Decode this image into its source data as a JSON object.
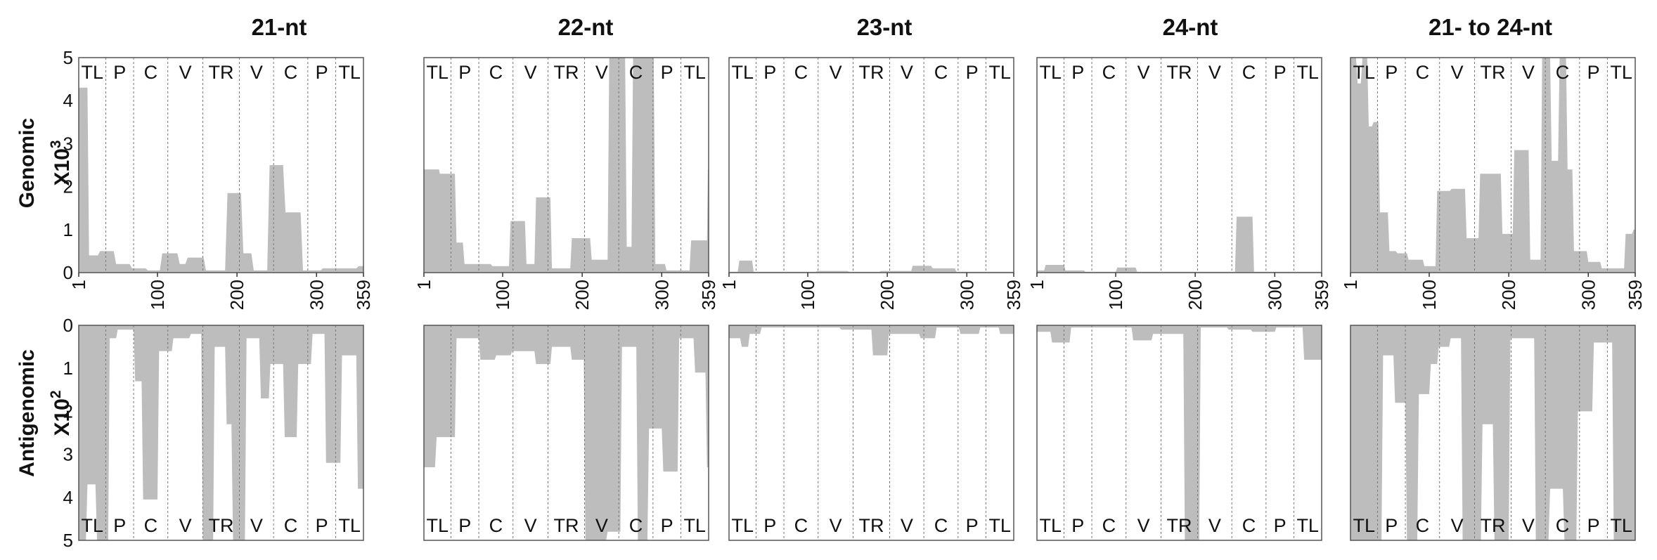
{
  "colors": {
    "area": "#bdbdbd",
    "frame": "#555555",
    "divider": "#777777",
    "text": "#111111"
  },
  "chart_data": {
    "type": "area",
    "columns": [
      "21-nt",
      "22-nt",
      "23-nt",
      "24-nt",
      "21- to 24-nt"
    ],
    "rows": [
      {
        "label": "Genomic",
        "multiplier": "X10",
        "exponent": "3",
        "ylim": [
          0,
          5
        ],
        "yticks": [
          "0",
          "1",
          "2",
          "3",
          "4",
          "5"
        ]
      },
      {
        "label": "Antigenomic",
        "multiplier": "X10",
        "exponent": "2",
        "ylim": [
          0,
          5
        ],
        "yticks": [
          "0",
          "1",
          "2",
          "3",
          "4",
          "5"
        ],
        "inverted": true
      }
    ],
    "xlim": [
      1,
      359
    ],
    "xticks": [
      "1",
      "100",
      "200",
      "300",
      "359"
    ],
    "regions": [
      {
        "label": "TL",
        "start": 1,
        "end": 35
      },
      {
        "label": "P",
        "start": 35,
        "end": 70
      },
      {
        "label": "C",
        "start": 70,
        "end": 113
      },
      {
        "label": "V",
        "start": 113,
        "end": 157
      },
      {
        "label": "TR",
        "start": 157,
        "end": 203
      },
      {
        "label": "V",
        "start": 203,
        "end": 246
      },
      {
        "label": "C",
        "start": 246,
        "end": 289
      },
      {
        "label": "P",
        "start": 289,
        "end": 324
      },
      {
        "label": "TL",
        "start": 324,
        "end": 359
      }
    ],
    "panels": [
      {
        "row": 0,
        "col": 0,
        "series": {
          "name": "21-nt genomic",
          "x": [
            1,
            12,
            14,
            25,
            28,
            45,
            48,
            65,
            68,
            85,
            88,
            103,
            106,
            125,
            128,
            135,
            138,
            158,
            161,
            185,
            188,
            205,
            208,
            218,
            221,
            238,
            241,
            258,
            261,
            280,
            283,
            305,
            308,
            350,
            353,
            359
          ],
          "y": [
            4.3,
            4.3,
            0.4,
            0.4,
            0.5,
            0.5,
            0.2,
            0.2,
            0.1,
            0.1,
            0.05,
            0.05,
            0.45,
            0.45,
            0.2,
            0.2,
            0.35,
            0.35,
            0.05,
            0.05,
            1.85,
            1.85,
            0.45,
            0.45,
            0.05,
            0.05,
            2.5,
            2.5,
            1.4,
            1.4,
            0.05,
            0.05,
            0.1,
            0.1,
            0.15,
            0.15
          ]
        }
      },
      {
        "row": 0,
        "col": 1,
        "series": {
          "name": "22-nt genomic",
          "x": [
            1,
            20,
            21,
            40,
            42,
            50,
            52,
            85,
            87,
            108,
            110,
            128,
            130,
            140,
            142,
            160,
            162,
            185,
            187,
            210,
            212,
            232,
            234,
            254,
            256,
            262,
            264,
            290,
            292,
            304,
            306,
            335,
            337,
            357,
            358,
            359
          ],
          "y": [
            2.4,
            2.4,
            2.3,
            2.3,
            0.7,
            0.7,
            0.2,
            0.2,
            0.15,
            0.15,
            1.2,
            1.2,
            0.2,
            0.2,
            1.75,
            1.75,
            0.1,
            0.1,
            0.8,
            0.8,
            0.3,
            0.3,
            5.0,
            5.0,
            0.6,
            0.6,
            5.0,
            5.0,
            0.2,
            0.2,
            0.05,
            0.05,
            0.75,
            0.75,
            2.4,
            2.4
          ]
        }
      },
      {
        "row": 0,
        "col": 2,
        "series": {
          "name": "23-nt genomic",
          "x": [
            1,
            12,
            14,
            30,
            32,
            110,
            112,
            150,
            152,
            190,
            192,
            230,
            232,
            255,
            257,
            285,
            287,
            359
          ],
          "y": [
            0.02,
            0.02,
            0.28,
            0.28,
            0.02,
            0.02,
            0.04,
            0.04,
            0.02,
            0.02,
            0.04,
            0.04,
            0.16,
            0.16,
            0.1,
            0.1,
            0.02,
            0.02
          ]
        }
      },
      {
        "row": 0,
        "col": 3,
        "series": {
          "name": "24-nt genomic",
          "x": [
            1,
            10,
            12,
            35,
            37,
            60,
            62,
            100,
            102,
            125,
            127,
            250,
            252,
            272,
            274,
            359
          ],
          "y": [
            0.05,
            0.05,
            0.18,
            0.18,
            0.05,
            0.05,
            0.02,
            0.02,
            0.12,
            0.12,
            0.02,
            0.02,
            1.3,
            1.3,
            0.02,
            0.02
          ]
        }
      },
      {
        "row": 0,
        "col": 4,
        "series": {
          "name": "21- to 24-nt genomic",
          "x": [
            1,
            8,
            10,
            14,
            16,
            22,
            24,
            28,
            30,
            36,
            38,
            48,
            50,
            58,
            60,
            72,
            74,
            92,
            94,
            108,
            110,
            126,
            128,
            145,
            147,
            162,
            164,
            190,
            192,
            205,
            207,
            225,
            227,
            240,
            242,
            252,
            254,
            262,
            264,
            272,
            274,
            280,
            282,
            298,
            300,
            315,
            317,
            345,
            347,
            355,
            357,
            359
          ],
          "y": [
            5.0,
            5.0,
            4.4,
            4.4,
            5.0,
            5.0,
            3.4,
            3.4,
            3.5,
            3.5,
            1.4,
            1.4,
            0.5,
            0.5,
            0.45,
            0.45,
            0.3,
            0.3,
            0.15,
            0.15,
            1.9,
            1.9,
            1.95,
            1.95,
            0.8,
            0.8,
            2.3,
            2.3,
            0.9,
            0.9,
            2.85,
            2.85,
            0.3,
            0.3,
            5.0,
            5.0,
            2.6,
            2.6,
            5.0,
            5.0,
            2.4,
            2.4,
            0.5,
            0.5,
            0.25,
            0.25,
            0.1,
            0.1,
            0.9,
            0.9,
            1.0,
            1.0
          ]
        }
      },
      {
        "row": 1,
        "col": 0,
        "series": {
          "name": "21-nt antigenomic",
          "x": [
            1,
            10,
            12,
            22,
            24,
            38,
            40,
            48,
            50,
            70,
            72,
            80,
            82,
            100,
            102,
            118,
            120,
            140,
            142,
            155,
            157,
            170,
            172,
            185,
            187,
            193,
            195,
            210,
            212,
            228,
            230,
            240,
            242,
            258,
            260,
            275,
            277,
            293,
            295,
            310,
            312,
            330,
            332,
            350,
            352,
            359
          ],
          "y": [
            5.0,
            5.0,
            3.7,
            3.7,
            5.0,
            5.0,
            0.3,
            0.3,
            0.1,
            0.1,
            1.3,
            1.3,
            4.05,
            4.05,
            0.6,
            0.6,
            0.3,
            0.3,
            0.2,
            0.2,
            5.0,
            5.0,
            0.5,
            0.5,
            2.3,
            2.3,
            5.0,
            5.0,
            0.3,
            0.3,
            1.7,
            1.7,
            0.9,
            0.9,
            2.6,
            2.6,
            0.9,
            0.9,
            0.2,
            0.2,
            3.2,
            3.2,
            0.7,
            0.7,
            3.8,
            3.8
          ]
        }
      },
      {
        "row": 1,
        "col": 1,
        "series": {
          "name": "22-nt antigenomic",
          "x": [
            1,
            15,
            17,
            40,
            42,
            70,
            72,
            90,
            92,
            110,
            112,
            140,
            142,
            160,
            162,
            185,
            187,
            202,
            204,
            230,
            232,
            248,
            250,
            268,
            270,
            282,
            284,
            300,
            302,
            320,
            322,
            340,
            342,
            355,
            357,
            359
          ],
          "y": [
            3.3,
            3.3,
            2.6,
            2.6,
            0.3,
            0.3,
            0.8,
            0.8,
            0.7,
            0.7,
            0.6,
            0.6,
            0.9,
            0.9,
            0.5,
            0.5,
            0.8,
            0.8,
            5.0,
            5.0,
            4.8,
            4.8,
            0.5,
            0.5,
            5.0,
            5.0,
            2.4,
            2.4,
            3.4,
            3.4,
            0.3,
            0.3,
            1.1,
            1.1,
            3.3,
            3.3
          ]
        }
      },
      {
        "row": 1,
        "col": 2,
        "series": {
          "name": "23-nt antigenomic",
          "x": [
            1,
            15,
            17,
            25,
            27,
            40,
            42,
            140,
            142,
            180,
            182,
            200,
            202,
            240,
            242,
            260,
            262,
            290,
            292,
            315,
            317,
            340,
            342,
            359
          ],
          "y": [
            0.3,
            0.3,
            0.5,
            0.5,
            0.2,
            0.2,
            0.05,
            0.05,
            0.1,
            0.1,
            0.7,
            0.7,
            0.2,
            0.2,
            0.3,
            0.3,
            0.05,
            0.05,
            0.2,
            0.2,
            0.05,
            0.05,
            0.2,
            0.2
          ]
        }
      },
      {
        "row": 1,
        "col": 3,
        "series": {
          "name": "24-nt antigenomic",
          "x": [
            1,
            18,
            20,
            42,
            44,
            120,
            122,
            145,
            147,
            185,
            187,
            205,
            207,
            240,
            242,
            270,
            272,
            300,
            302,
            335,
            337,
            359
          ],
          "y": [
            0.15,
            0.15,
            0.4,
            0.4,
            0.05,
            0.05,
            0.35,
            0.35,
            0.2,
            0.2,
            5.0,
            5.0,
            0.05,
            0.05,
            0.1,
            0.1,
            0.15,
            0.15,
            0.05,
            0.05,
            0.8,
            0.8
          ]
        }
      },
      {
        "row": 1,
        "col": 4,
        "series": {
          "name": "21- to 24-nt antigenomic",
          "x": [
            1,
            40,
            42,
            55,
            57,
            70,
            72,
            85,
            87,
            100,
            102,
            110,
            112,
            125,
            127,
            140,
            142,
            165,
            167,
            180,
            182,
            200,
            202,
            232,
            234,
            250,
            252,
            268,
            270,
            285,
            287,
            305,
            307,
            330,
            332,
            359
          ],
          "y": [
            5.0,
            5.0,
            0.7,
            0.7,
            1.8,
            1.8,
            5.0,
            5.0,
            1.6,
            1.6,
            0.9,
            0.9,
            0.5,
            0.5,
            0.3,
            0.3,
            5.0,
            5.0,
            2.3,
            2.3,
            5.0,
            5.0,
            0.3,
            0.3,
            5.0,
            5.0,
            3.8,
            3.8,
            5.0,
            5.0,
            2.0,
            2.0,
            0.4,
            0.4,
            5.0,
            5.0
          ]
        }
      }
    ]
  }
}
